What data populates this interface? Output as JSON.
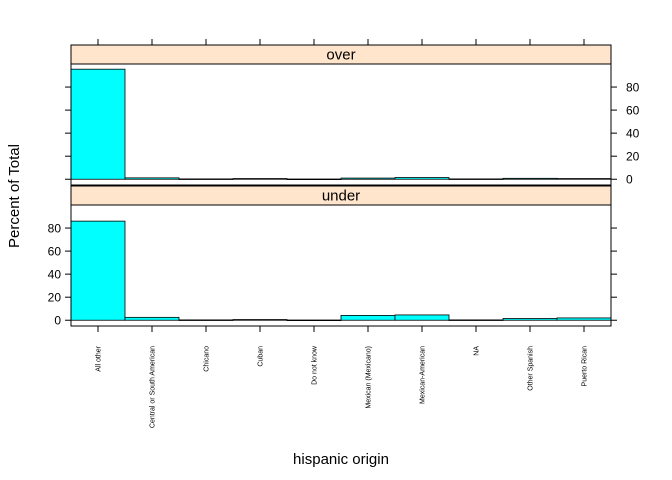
{
  "chart_data": {
    "type": "bar",
    "title": "",
    "xlabel": "hispanic origin",
    "ylabel": "Percent of Total",
    "ylim": [
      -5,
      100
    ],
    "yticks": [
      0,
      20,
      40,
      60,
      80
    ],
    "grid": false,
    "legend": "none",
    "bar_color": "#00ffff",
    "strip_color": "#ffe5cc",
    "categories": [
      "All other",
      "Central or South American",
      "Chicano",
      "Cuban",
      "Do not know",
      "Mexican (Mexicano)",
      "Mexican-American",
      "NA",
      "Other Spanish",
      "Puerto Rican"
    ],
    "panels": [
      {
        "label": "over",
        "values": [
          95.5,
          1.2,
          0.3,
          0.6,
          0.2,
          1.0,
          1.5,
          0.3,
          0.8,
          0.6
        ]
      },
      {
        "label": "under",
        "values": [
          86.0,
          2.5,
          0.3,
          0.6,
          0.2,
          4.2,
          4.6,
          0.3,
          1.5,
          2.0
        ]
      }
    ]
  }
}
